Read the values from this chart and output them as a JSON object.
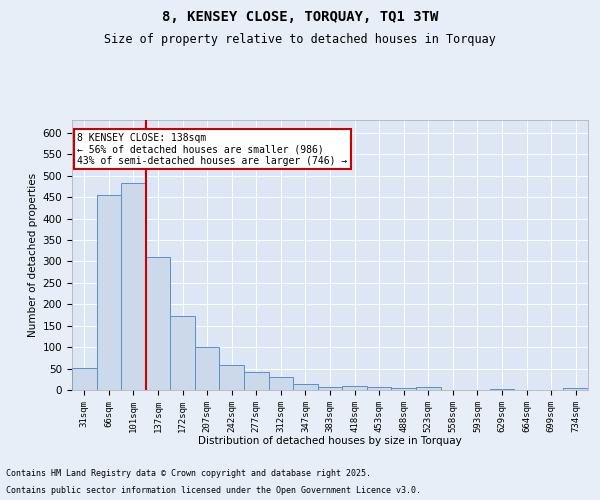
{
  "title": "8, KENSEY CLOSE, TORQUAY, TQ1 3TW",
  "subtitle": "Size of property relative to detached houses in Torquay",
  "xlabel": "Distribution of detached houses by size in Torquay",
  "ylabel": "Number of detached properties",
  "bar_color": "#ccd9ea",
  "bar_edge_color": "#5b8fc9",
  "bg_color": "#dce6f5",
  "grid_color": "#ffffff",
  "categories": [
    "31sqm",
    "66sqm",
    "101sqm",
    "137sqm",
    "172sqm",
    "207sqm",
    "242sqm",
    "277sqm",
    "312sqm",
    "347sqm",
    "383sqm",
    "418sqm",
    "453sqm",
    "488sqm",
    "523sqm",
    "558sqm",
    "593sqm",
    "629sqm",
    "664sqm",
    "699sqm",
    "734sqm"
  ],
  "values": [
    52,
    455,
    482,
    311,
    173,
    100,
    58,
    43,
    30,
    15,
    8,
    9,
    8,
    5,
    8,
    0,
    0,
    3,
    0,
    0,
    4
  ],
  "red_line_index": 3,
  "annotation_text": "8 KENSEY CLOSE: 138sqm\n← 56% of detached houses are smaller (986)\n43% of semi-detached houses are larger (746) →",
  "annotation_box_facecolor": "#ffffff",
  "annotation_box_edgecolor": "#cc0000",
  "ylim": [
    0,
    630
  ],
  "yticks": [
    0,
    50,
    100,
    150,
    200,
    250,
    300,
    350,
    400,
    450,
    500,
    550,
    600
  ],
  "red_line_color": "#cc0000",
  "footnote1": "Contains HM Land Registry data © Crown copyright and database right 2025.",
  "footnote2": "Contains public sector information licensed under the Open Government Licence v3.0."
}
